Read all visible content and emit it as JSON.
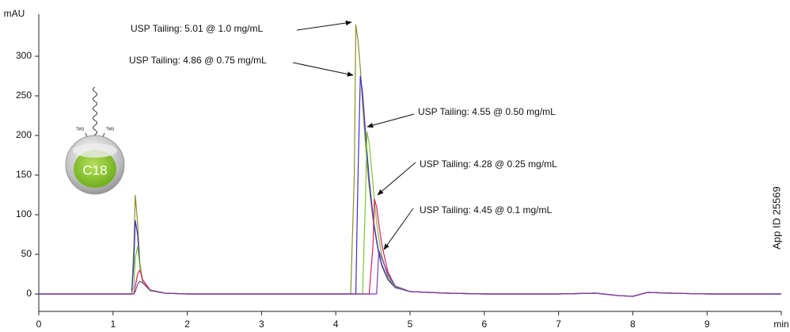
{
  "chart_data": {
    "type": "line",
    "y_label": "mAU",
    "x": [
      0,
      1.2,
      1.25,
      1.28,
      1.3,
      1.33,
      1.36,
      1.4,
      1.5,
      1.7,
      2,
      3,
      4,
      4.2,
      4.25,
      4.27,
      4.3,
      4.33,
      4.36,
      4.4,
      4.42,
      4.45,
      4.5,
      4.52,
      4.55,
      4.58,
      4.62,
      4.7,
      4.8,
      5,
      5.5,
      6,
      7,
      7.5,
      7.8,
      8,
      8.2,
      8.5,
      9,
      10
    ],
    "series": [
      {
        "color": "#8a8f2a",
        "values": [
          0,
          0,
          0,
          60,
          125,
          90,
          40,
          15,
          4,
          1,
          0,
          0,
          0,
          0,
          150,
          340,
          320,
          285,
          240,
          190,
          165,
          135,
          95,
          82,
          65,
          50,
          35,
          18,
          8,
          3,
          1,
          0,
          0,
          1,
          -2,
          -3,
          2,
          1,
          0,
          0
        ]
      },
      {
        "color": "#3a2fd0",
        "values": [
          0,
          0,
          0,
          40,
          93,
          75,
          35,
          14,
          4,
          1,
          0,
          0,
          0,
          0,
          0,
          0,
          150,
          275,
          255,
          205,
          180,
          145,
          100,
          85,
          68,
          52,
          37,
          19,
          8,
          3,
          1,
          0,
          0,
          1,
          -2,
          -3,
          2,
          1,
          0,
          0
        ]
      },
      {
        "color": "#7dc23a",
        "values": [
          0,
          0,
          0,
          10,
          45,
          60,
          35,
          14,
          4,
          1,
          0,
          0,
          0,
          0,
          0,
          0,
          0,
          0,
          0,
          120,
          205,
          190,
          140,
          118,
          90,
          70,
          48,
          22,
          9,
          3,
          1,
          0,
          0,
          1,
          -2,
          -3,
          2,
          1,
          0,
          0
        ]
      },
      {
        "color": "#d8205a",
        "values": [
          0,
          0,
          0,
          0,
          10,
          25,
          30,
          18,
          5,
          1,
          0,
          0,
          0,
          0,
          0,
          0,
          0,
          0,
          0,
          0,
          0,
          0,
          60,
          120,
          110,
          88,
          62,
          28,
          10,
          3,
          1,
          0,
          0,
          1,
          -2,
          -3,
          2,
          1,
          0,
          0
        ]
      },
      {
        "color": "#7a3fb0",
        "values": [
          0,
          0,
          0,
          0,
          3,
          12,
          16,
          14,
          5,
          1,
          0,
          0,
          0,
          0,
          0,
          0,
          0,
          0,
          0,
          0,
          0,
          0,
          0,
          0,
          0,
          55,
          45,
          25,
          10,
          3,
          1,
          0,
          0,
          1,
          -2,
          -3,
          2,
          1,
          0,
          0
        ]
      }
    ],
    "annotations": [
      "USP Tailing: 5.01 @ 1.0 mg/mL",
      "USP Tailing: 4.86 @ 0.75 mg/mL",
      "USP Tailing: 4.55 @ 0.50 mg/mL",
      "USP Tailing: 4.28 @ 0.25 mg/mL",
      "USP Tailing: 4.45 @ 0.1 mg/mL"
    ],
    "xlim": [
      0,
      10
    ],
    "ylim": [
      -22,
      353
    ],
    "xticks": [
      0,
      1,
      2,
      3,
      4,
      5,
      6,
      7,
      8,
      9,
      {
        "value": 10,
        "label": "min"
      }
    ],
    "yticks": [
      0,
      50,
      100,
      150,
      200,
      250,
      300
    ],
    "side_label": "App ID 25569"
  },
  "icon": {
    "label": "C18",
    "tms": [
      "TMS",
      "TMS"
    ]
  }
}
